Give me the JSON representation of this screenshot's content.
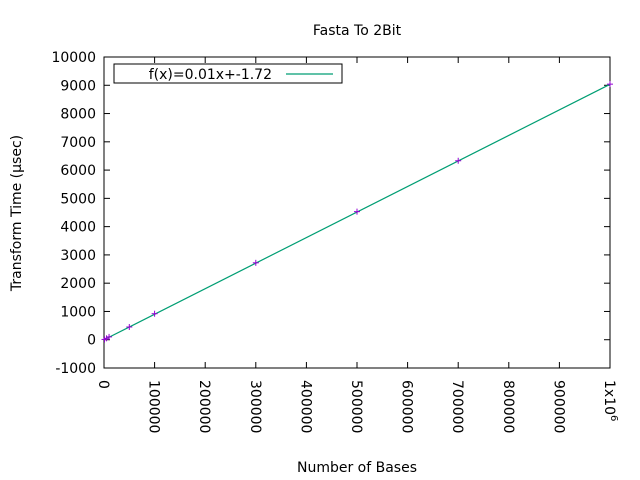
{
  "chart_data": {
    "type": "line",
    "title": "Fasta To 2Bit",
    "xlabel": "Number of Bases",
    "ylabel": "Transform Time (μsec)",
    "xlim": [
      0,
      1000000
    ],
    "ylim": [
      -1000,
      10000
    ],
    "x_ticks": [
      0,
      100000,
      200000,
      300000,
      400000,
      500000,
      600000,
      700000,
      800000,
      900000,
      1000000
    ],
    "x_tick_labels": [
      "0",
      "100000",
      "200000",
      "300000",
      "400000",
      "500000",
      "600000",
      "700000",
      "800000",
      "900000",
      "1x10"
    ],
    "x_tick_last_sup": "6",
    "y_ticks": [
      -1000,
      0,
      1000,
      2000,
      3000,
      4000,
      5000,
      6000,
      7000,
      8000,
      9000,
      10000
    ],
    "y_tick_labels": [
      "-1000",
      "0",
      "1000",
      "2000",
      "3000",
      "4000",
      "5000",
      "6000",
      "7000",
      "8000",
      "9000",
      "10000"
    ],
    "legend_position": "top-left",
    "grid": false,
    "series": [
      {
        "name": "",
        "style": "points",
        "marker": "+",
        "color": "#9400d3",
        "x": [
          1000,
          5000,
          10000,
          50000,
          100000,
          300000,
          500000,
          700000,
          1000000
        ],
        "y": [
          10,
          50,
          100,
          450,
          920,
          2720,
          4530,
          6330,
          9040
        ]
      },
      {
        "name": "f(x)=0.01x+-1.72",
        "style": "line",
        "color": "#009e73",
        "slope": 0.009036,
        "intercept": -1.72
      }
    ]
  }
}
